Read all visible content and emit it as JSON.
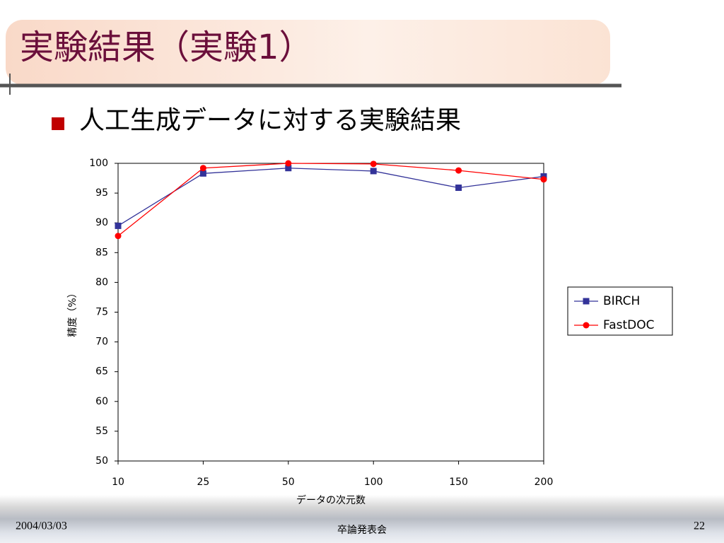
{
  "slide": {
    "title": "実験結果（実験1）",
    "bullet": "人工生成データに対する実験結果",
    "date": "2004/03/03",
    "footer": "卒論発表会",
    "page_number": "22"
  },
  "chart_data": {
    "type": "line",
    "x_label": "データの次元数",
    "y_label": "精度（%）",
    "categories": [
      "10",
      "25",
      "50",
      "100",
      "150",
      "200"
    ],
    "series": [
      {
        "name": "BIRCH",
        "color": "#333399",
        "marker": "square",
        "values": [
          89.5,
          98.3,
          99.2,
          98.7,
          95.9,
          97.8
        ]
      },
      {
        "name": "FastDOC",
        "color": "#ff0000",
        "marker": "circle",
        "values": [
          87.8,
          99.2,
          100,
          99.9,
          98.8,
          97.3
        ]
      }
    ],
    "ylim": [
      50,
      100
    ],
    "yticks": [
      50,
      55,
      60,
      65,
      70,
      75,
      80,
      85,
      90,
      95,
      100
    ],
    "grid": false,
    "legend": "right"
  }
}
